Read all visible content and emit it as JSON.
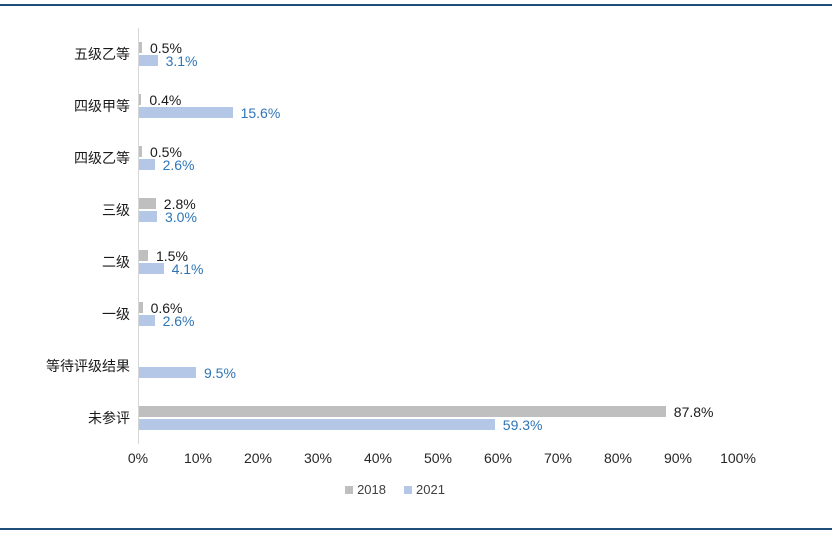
{
  "page": {
    "background": "#FFFFFF",
    "rule_color": "#1F4E79",
    "axis_line_color": "#D6D6D6"
  },
  "chart_data": {
    "type": "bar",
    "orientation": "horizontal",
    "title": "",
    "xlabel": "",
    "ylabel": "",
    "xlim": [
      0,
      100
    ],
    "grid": false,
    "legend_position": "bottom",
    "categories": [
      "五级乙等",
      "四级甲等",
      "四级乙等",
      "三级",
      "二级",
      "一级",
      "等待评级结果",
      "未参评"
    ],
    "x_ticks": [
      "0%",
      "10%",
      "20%",
      "30%",
      "40%",
      "50%",
      "60%",
      "70%",
      "80%",
      "90%",
      "100%"
    ],
    "legend": [
      "2018",
      "2021"
    ],
    "series": [
      {
        "name": "2018",
        "color": "#BFBFBF",
        "label_color": "#1A1A1A",
        "values": [
          0.5,
          0.4,
          0.5,
          2.8,
          1.5,
          0.6,
          null,
          87.8
        ],
        "labels": [
          "0.5%",
          "0.4%",
          "0.5%",
          "2.8%",
          "1.5%",
          "0.6%",
          "",
          "87.8%"
        ]
      },
      {
        "name": "2021",
        "color": "#B4C7E7",
        "label_color": "#2E75B6",
        "values": [
          3.1,
          15.6,
          2.6,
          3.0,
          4.1,
          2.6,
          9.5,
          59.3
        ],
        "labels": [
          "3.1%",
          "15.6%",
          "2.6%",
          "3.0%",
          "4.1%",
          "2.6%",
          "9.5%",
          "59.3%"
        ]
      }
    ]
  }
}
